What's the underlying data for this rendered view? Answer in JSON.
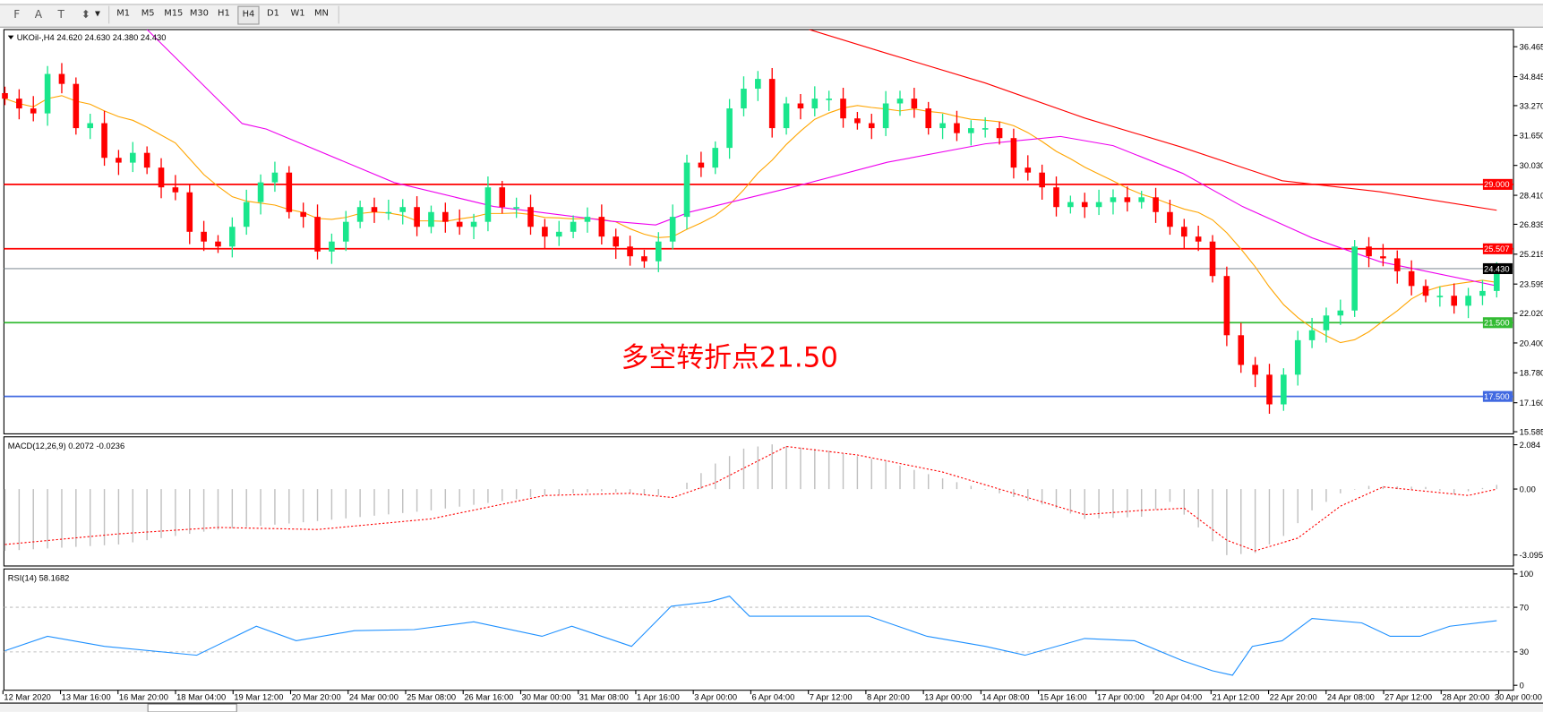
{
  "toolbar": {
    "tools": [
      {
        "name": "fibo-fan-icon",
        "glyph": "F"
      },
      {
        "name": "text-icon",
        "glyph": "A"
      },
      {
        "name": "text-label-icon",
        "glyph": "T"
      },
      {
        "name": "arrows-icon",
        "glyph": "⬍"
      }
    ],
    "periods": [
      "M1",
      "M5",
      "M15",
      "M30",
      "H1",
      "H4",
      "D1",
      "W1",
      "MN"
    ],
    "active_period": "H4"
  },
  "chart": {
    "header": "UKOil-,H4  24.620 24.630 24.380 24.430",
    "annotation": "多空转折点21.50",
    "annotation_color": "#ff0000",
    "bull_color": "#19e68c",
    "bear_color": "#ff0000"
  },
  "chart_data": [
    {
      "type": "candlestick",
      "title": "UKOil-,H4",
      "ohlc_last": {
        "open": 24.62,
        "high": 24.63,
        "low": 24.38,
        "close": 24.43
      },
      "closes": [
        33.65,
        33.12,
        32.85,
        34.99,
        34.45,
        32.05,
        32.32,
        30.44,
        30.18,
        30.71,
        29.91,
        28.84,
        28.57,
        26.43,
        25.9,
        25.63,
        26.7,
        28.04,
        29.11,
        29.64,
        27.5,
        27.24,
        25.36,
        25.9,
        26.97,
        27.77,
        27.5,
        27.5,
        27.77,
        26.7,
        27.5,
        26.97,
        26.7,
        26.97,
        28.84,
        27.77,
        27.77,
        26.7,
        26.17,
        26.43,
        26.97,
        27.24,
        26.17,
        25.63,
        25.1,
        24.83,
        25.9,
        27.24,
        30.18,
        29.91,
        30.98,
        33.12,
        34.19,
        34.72,
        32.05,
        33.39,
        33.12,
        33.65,
        33.65,
        32.58,
        32.32,
        32.05,
        33.39,
        33.65,
        33.12,
        32.05,
        32.32,
        31.78,
        32.05,
        32.05,
        31.51,
        29.91,
        29.64,
        28.84,
        27.77,
        28.04,
        27.77,
        28.04,
        28.3,
        28.04,
        28.3,
        27.5,
        26.7,
        26.17,
        25.9,
        24.03,
        20.82,
        19.21,
        18.68,
        17.07,
        18.68,
        20.55,
        21.09,
        21.89,
        22.16,
        25.63,
        25.1,
        24.99,
        24.29,
        23.49,
        22.96,
        22.96,
        22.42,
        22.96,
        23.22,
        24.43
      ],
      "price_axis": [
        "36.465",
        "34.845",
        "33.270",
        "31.650",
        "30.030",
        "28.410",
        "26.835",
        "25.215",
        "23.595",
        "22.020",
        "20.400",
        "18.780",
        "17.160",
        "15.585"
      ],
      "ylim": [
        15.585,
        36.465
      ],
      "levels": [
        {
          "label": "29.000",
          "value": 29.0,
          "color": "#ff0000"
        },
        {
          "label": "25.507",
          "value": 25.507,
          "color": "#ff0000"
        },
        {
          "label": "24.430",
          "value": 24.43,
          "color": "#000000",
          "line_color": "#8a949c"
        },
        {
          "label": "21.500",
          "value": 21.5,
          "color": "#33bb33"
        },
        {
          "label": "17.500",
          "value": 17.5,
          "color": "#4169e1"
        }
      ],
      "moving_averages": [
        {
          "color": "#ffa500",
          "method": "sma",
          "period": 10
        },
        {
          "color": "#ee00ee",
          "points": [
            [
              10,
              37.4
            ],
            [
              16.7,
              32.3
            ],
            [
              18.4,
              32.0
            ],
            [
              27.4,
              29.1
            ],
            [
              34.4,
              27.8
            ],
            [
              42.7,
              27.0
            ],
            [
              45.8,
              26.8
            ],
            [
              48.2,
              27.5
            ],
            [
              55.2,
              28.8
            ],
            [
              62.1,
              30.2
            ],
            [
              69,
              31.2
            ],
            [
              74.3,
              31.6
            ],
            [
              78,
              31.1
            ],
            [
              82.9,
              29.6
            ],
            [
              87.1,
              27.8
            ],
            [
              92,
              26.1
            ],
            [
              96.8,
              24.8
            ],
            [
              105,
              23.5
            ]
          ]
        },
        {
          "color": "#ff0000",
          "points": [
            [
              56.6,
              37.4
            ],
            [
              62.1,
              36.1
            ],
            [
              69,
              34.5
            ],
            [
              76,
              32.6
            ],
            [
              82.9,
              31.0
            ],
            [
              89.9,
              29.2
            ],
            [
              96.8,
              28.6
            ],
            [
              105,
              27.6
            ]
          ]
        }
      ]
    },
    {
      "type": "bar",
      "title": "MACD(12,26,9) 0.2072 -0.0236",
      "axis": [
        "2.084",
        "0.00",
        "-3.0957"
      ],
      "ylim": [
        -3.0957,
        2.084
      ],
      "macd": [
        [
          0,
          -2.9
        ],
        [
          8,
          -2.6
        ],
        [
          15,
          -1.9
        ],
        [
          22,
          -1.5
        ],
        [
          30,
          -1.0
        ],
        [
          38,
          -0.3
        ],
        [
          42,
          -0.1
        ],
        [
          46,
          -0.3
        ],
        [
          48,
          0.3
        ],
        [
          50,
          1.2
        ],
        [
          52,
          1.9
        ],
        [
          54,
          2.1
        ],
        [
          58,
          1.8
        ],
        [
          62,
          1.3
        ],
        [
          66,
          0.5
        ],
        [
          70,
          -0.2
        ],
        [
          74,
          -0.9
        ],
        [
          76,
          -1.4
        ],
        [
          80,
          -1.3
        ],
        [
          82,
          -0.6
        ],
        [
          84,
          -1.8
        ],
        [
          86,
          -3.1
        ],
        [
          88,
          -3.0
        ],
        [
          90,
          -2.2
        ],
        [
          92,
          -1.0
        ],
        [
          94,
          -0.2
        ],
        [
          96,
          0.15
        ],
        [
          100,
          0.1
        ],
        [
          102,
          -0.25
        ],
        [
          105,
          0.2
        ]
      ],
      "signal": [
        [
          0,
          -2.6
        ],
        [
          8,
          -2.1
        ],
        [
          15,
          -1.8
        ],
        [
          22,
          -1.9
        ],
        [
          30,
          -1.4
        ],
        [
          38,
          -0.3
        ],
        [
          44,
          -0.2
        ],
        [
          47,
          -0.4
        ],
        [
          50,
          0.3
        ],
        [
          55,
          2.0
        ],
        [
          60,
          1.6
        ],
        [
          66,
          0.8
        ],
        [
          70,
          0.0
        ],
        [
          76,
          -1.2
        ],
        [
          80,
          -1.0
        ],
        [
          83,
          -0.9
        ],
        [
          86,
          -2.4
        ],
        [
          88,
          -2.9
        ],
        [
          91,
          -2.3
        ],
        [
          94,
          -0.8
        ],
        [
          97,
          0.1
        ],
        [
          100,
          -0.1
        ],
        [
          103,
          -0.3
        ],
        [
          105,
          0.0
        ]
      ],
      "hist_color": "#c0c0c0",
      "signal_color": "#ff0000"
    },
    {
      "type": "line",
      "title": "RSI(14) 58.1682",
      "axis": [
        "100",
        "70",
        "30",
        "0"
      ],
      "ylim": [
        0,
        100
      ],
      "levels": [
        70,
        30
      ],
      "color": "#1e90ff",
      "values": [
        [
          0,
          31
        ],
        [
          3,
          44
        ],
        [
          7,
          35
        ],
        [
          13.5,
          27
        ],
        [
          17.7,
          53
        ],
        [
          20.5,
          40
        ],
        [
          24.6,
          49
        ],
        [
          28.8,
          50
        ],
        [
          33,
          57
        ],
        [
          37.8,
          44
        ],
        [
          39.9,
          53
        ],
        [
          44.1,
          35
        ],
        [
          46.9,
          71
        ],
        [
          49.6,
          75
        ],
        [
          51,
          80
        ],
        [
          52.4,
          62
        ],
        [
          56.6,
          62
        ],
        [
          60.8,
          62
        ],
        [
          64.9,
          44
        ],
        [
          69,
          35
        ],
        [
          71.8,
          27
        ],
        [
          76,
          42
        ],
        [
          79.5,
          40
        ],
        [
          82.9,
          22
        ],
        [
          85,
          13
        ],
        [
          86.4,
          9
        ],
        [
          87.8,
          35
        ],
        [
          89.9,
          40
        ],
        [
          92,
          60
        ],
        [
          95.5,
          56
        ],
        [
          97.5,
          44
        ],
        [
          99.6,
          44
        ],
        [
          101.7,
          53
        ],
        [
          105,
          58
        ]
      ]
    }
  ],
  "time_axis": [
    "12 Mar 2020",
    "13 Mar 16:00",
    "16 Mar 20:00",
    "18 Mar 04:00",
    "19 Mar 12:00",
    "20 Mar 20:00",
    "24 Mar 00:00",
    "25 Mar 08:00",
    "26 Mar 16:00",
    "30 Mar 00:00",
    "31 Mar 08:00",
    "1 Apr 16:00",
    "3 Apr 00:00",
    "6 Apr 04:00",
    "7 Apr 12:00",
    "8 Apr 20:00",
    "13 Apr 00:00",
    "14 Apr 08:00",
    "15 Apr 16:00",
    "17 Apr 00:00",
    "20 Apr 04:00",
    "21 Apr 12:00",
    "22 Apr 20:00",
    "24 Apr 08:00",
    "27 Apr 12:00",
    "28 Apr 20:00",
    "30 Apr 00:00"
  ]
}
